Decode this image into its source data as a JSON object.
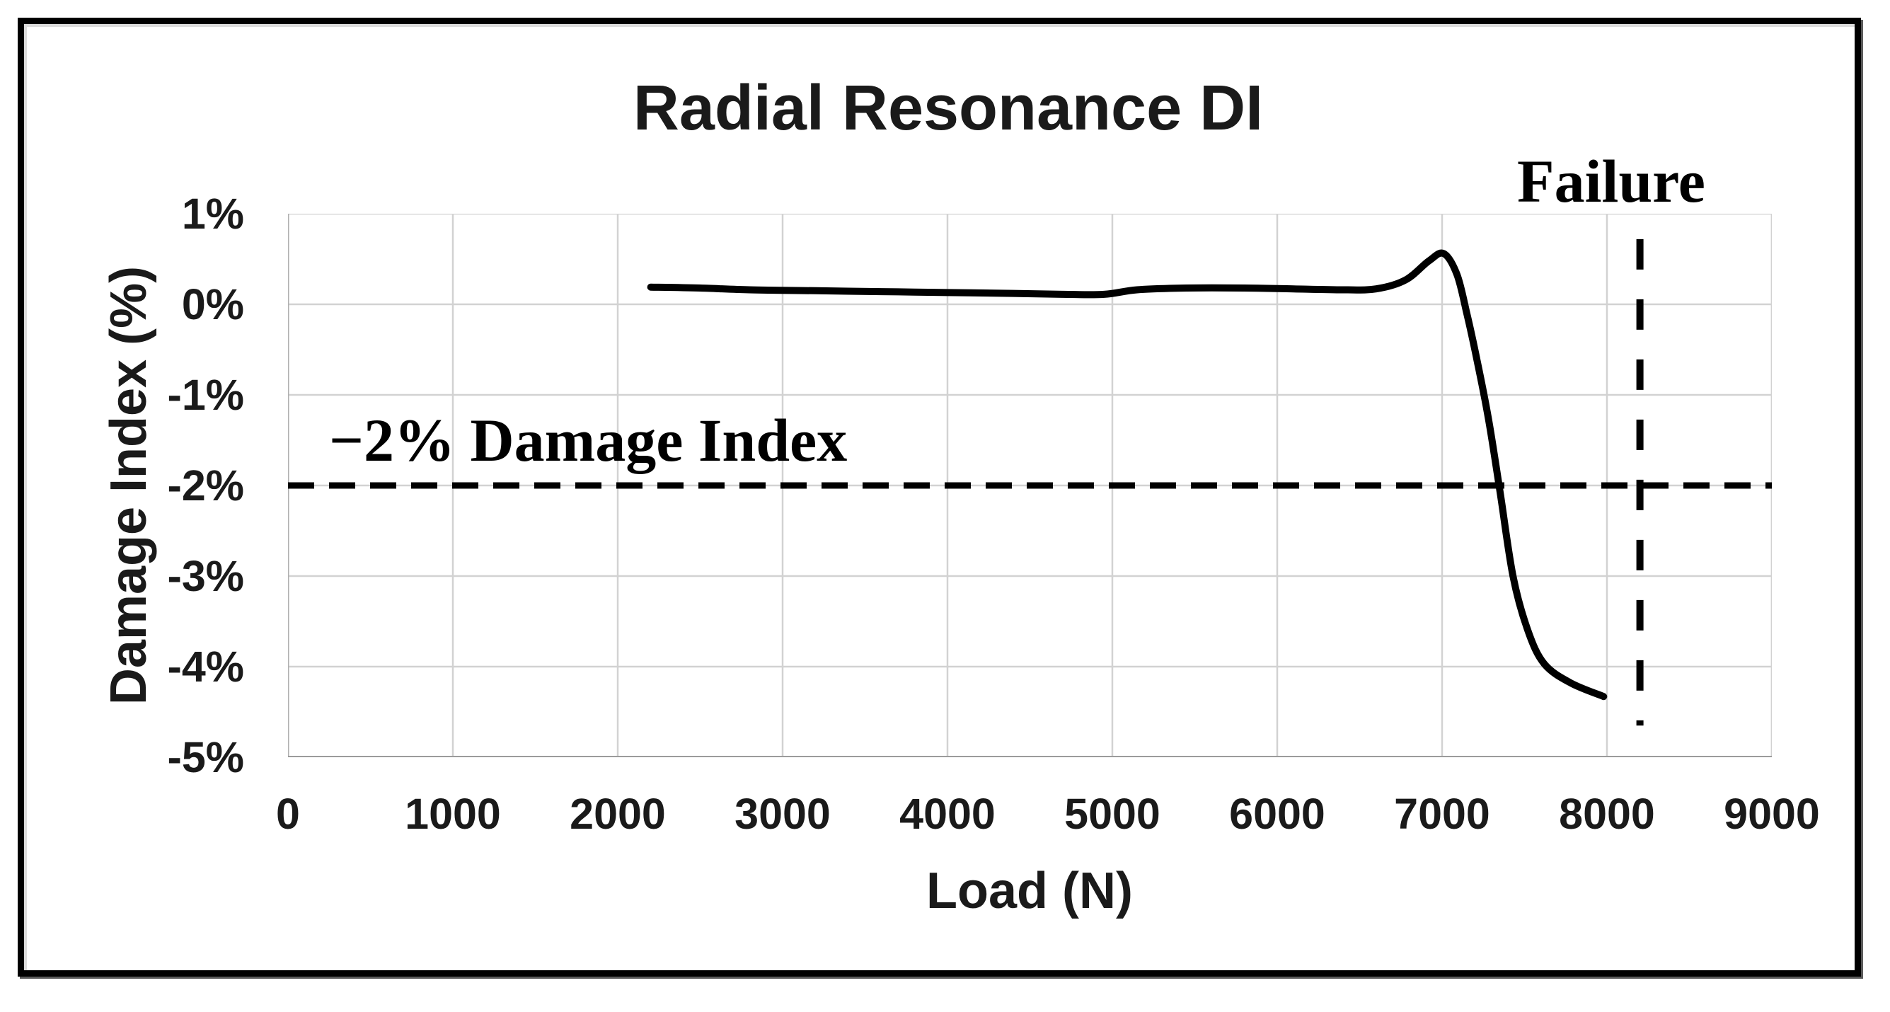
{
  "title": "Radial Resonance DI",
  "axes": {
    "x": {
      "label": "Load (N)",
      "tick_labels": [
        "0",
        "1000",
        "2000",
        "3000",
        "4000",
        "5000",
        "6000",
        "7000",
        "8000",
        "9000"
      ]
    },
    "y": {
      "label": "Damage Index (%)",
      "tick_labels": [
        "1%",
        "0%",
        "-1%",
        "-2%",
        "-3%",
        "-4%",
        "-5%"
      ]
    }
  },
  "annotations": {
    "threshold_label": "−2% Damage Index",
    "failure_label": "Failure"
  },
  "colors": {
    "curve": "#000000",
    "text": "#1a1a1a",
    "gridline": "#d2d2d2",
    "axis_line": "#9b9b9b",
    "frame_border": "#000000",
    "background": "#ffffff"
  },
  "chart_data": {
    "type": "line",
    "title": "Radial Resonance DI",
    "xlabel": "Load (N)",
    "ylabel": "Damage Index (%)",
    "xlim": [
      0,
      9000
    ],
    "ylim": [
      -5,
      1
    ],
    "x_ticks": [
      0,
      1000,
      2000,
      3000,
      4000,
      5000,
      6000,
      7000,
      8000,
      9000
    ],
    "y_ticks": [
      1,
      0,
      -1,
      -2,
      -3,
      -4,
      -5
    ],
    "grid": true,
    "legend": "none",
    "series": [
      {
        "name": "Radial Resonance DI",
        "color": "#000000",
        "points": [
          [
            2200,
            0.19
          ],
          [
            2500,
            0.18
          ],
          [
            2800,
            0.16
          ],
          [
            3200,
            0.15
          ],
          [
            3600,
            0.14
          ],
          [
            4000,
            0.13
          ],
          [
            4400,
            0.12
          ],
          [
            4700,
            0.11
          ],
          [
            4950,
            0.11
          ],
          [
            5150,
            0.16
          ],
          [
            5450,
            0.18
          ],
          [
            5800,
            0.18
          ],
          [
            6100,
            0.17
          ],
          [
            6400,
            0.16
          ],
          [
            6600,
            0.17
          ],
          [
            6780,
            0.27
          ],
          [
            6920,
            0.48
          ],
          [
            7010,
            0.56
          ],
          [
            7090,
            0.33
          ],
          [
            7150,
            -0.1
          ],
          [
            7210,
            -0.6
          ],
          [
            7280,
            -1.25
          ],
          [
            7350,
            -2.05
          ],
          [
            7430,
            -3.0
          ],
          [
            7520,
            -3.6
          ],
          [
            7620,
            -3.97
          ],
          [
            7780,
            -4.18
          ],
          [
            7980,
            -4.33
          ]
        ]
      }
    ],
    "reference_lines": [
      {
        "orientation": "horizontal",
        "y": -2,
        "x_range": [
          0,
          9000
        ],
        "style": "dashed",
        "label": "−2% Damage Index"
      },
      {
        "orientation": "vertical",
        "x": 8200,
        "y_range": [
          0.72,
          -4.65
        ],
        "style": "dashed",
        "label": "Failure"
      }
    ]
  }
}
